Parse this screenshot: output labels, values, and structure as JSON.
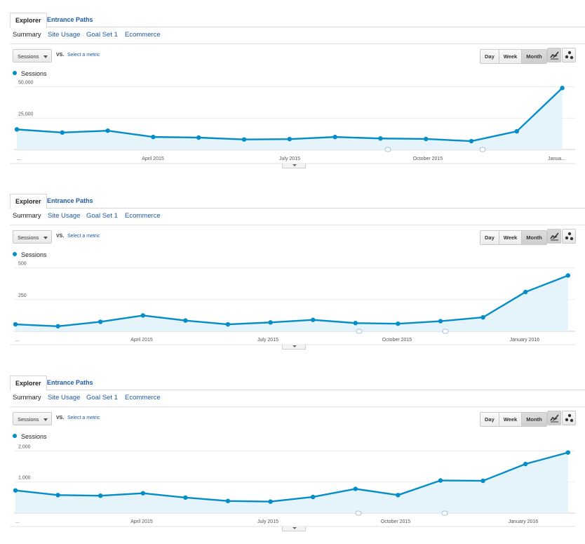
{
  "tabs": {
    "explorer": "Explorer",
    "entrance_paths": "Entrance Paths"
  },
  "subtabs": [
    "Summary",
    "Site Usage",
    "Goal Set 1",
    "Ecommerce"
  ],
  "controls": {
    "metric": "Sessions",
    "vs": "VS.",
    "select_metric": "Select a metric",
    "ranges": [
      "Day",
      "Week",
      "Month"
    ],
    "selected_range": "Month"
  },
  "legend": "Sessions",
  "colors": {
    "series": "#058dc7",
    "area": "#e5f3fa",
    "link": "#1e5aa8"
  },
  "icons": [
    "chevron-down-icon",
    "line-chart-icon",
    "motion-chart-icon",
    "annotation-marker-icon"
  ],
  "chart_data": [
    {
      "type": "area",
      "series": [
        {
          "name": "Sessions",
          "values": [
            16000,
            13500,
            15000,
            10000,
            9500,
            8000,
            8300,
            10000,
            8800,
            8400,
            6700,
            14500,
            49000
          ]
        }
      ],
      "yticks": [
        "25,000",
        "50,000"
      ],
      "ylim": [
        0,
        52000
      ],
      "xticks": [
        "...",
        "April 2015",
        "July 2015",
        "October 2015",
        "Janua..."
      ],
      "grid": true
    },
    {
      "type": "area",
      "series": [
        {
          "name": "Sessions",
          "values": [
            55,
            40,
            75,
            125,
            85,
            55,
            70,
            90,
            65,
            60,
            80,
            110,
            310,
            440
          ]
        }
      ],
      "yticks": [
        "250",
        "500"
      ],
      "ylim": [
        0,
        520
      ],
      "xticks": [
        "...",
        "April 2015",
        "July 2015",
        "October 2015",
        "January 2016"
      ],
      "grid": true
    },
    {
      "type": "area",
      "series": [
        {
          "name": "Sessions",
          "values": [
            730,
            580,
            560,
            640,
            500,
            390,
            370,
            520,
            780,
            580,
            1050,
            1040,
            1580,
            1950
          ]
        }
      ],
      "yticks": [
        "1,000",
        "2,000"
      ],
      "ylim": [
        0,
        2100
      ],
      "xticks": [
        "...",
        "April 2015",
        "July 2015",
        "October 2015",
        "January 2016"
      ],
      "grid": true
    }
  ]
}
